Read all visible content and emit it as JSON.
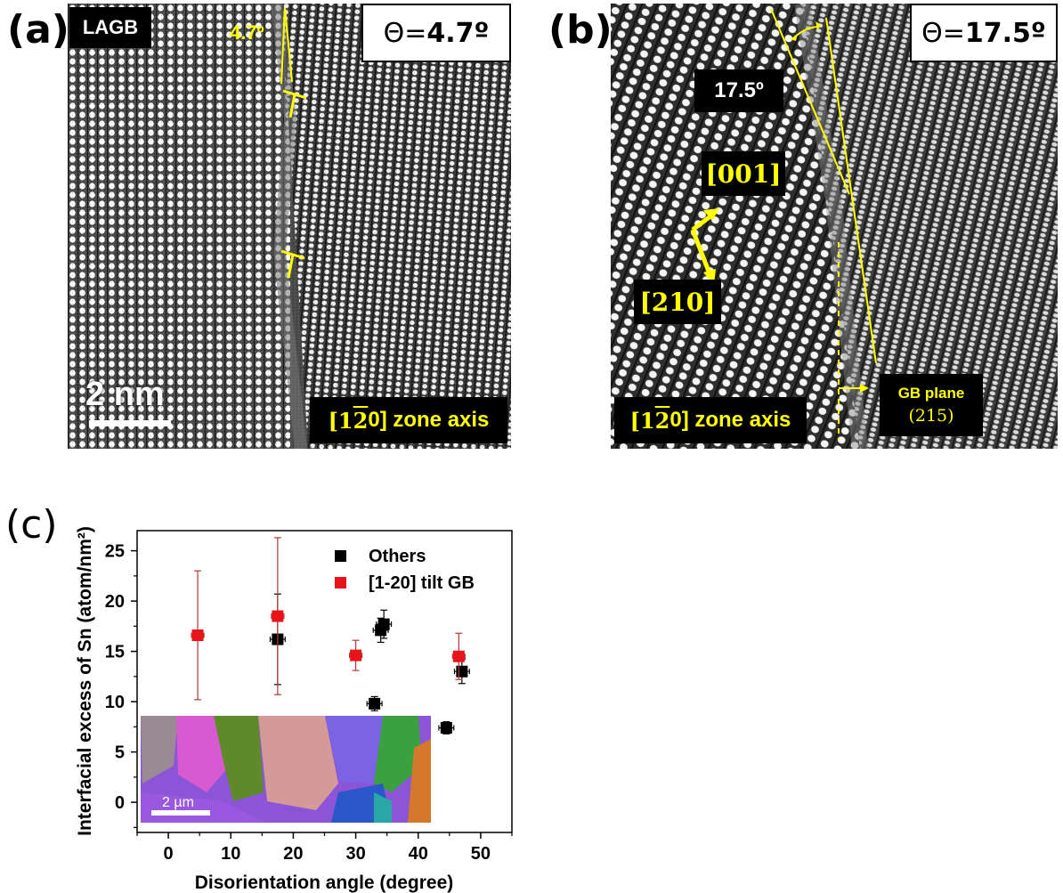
{
  "panel_a": {
    "letter": "(a)",
    "tag": "LAGB",
    "theta_label": "Θ=",
    "theta_value": "4.7º",
    "angle_annotation": "4.7º",
    "scale_bar": "2 nm",
    "zone_axis_prefix": "[1",
    "zone_axis_bar": "2",
    "zone_axis_suffix": "0] zone axis"
  },
  "panel_b": {
    "letter": "(b)",
    "theta_label": "Θ=",
    "theta_value": "17.5º",
    "angle_label": "17.5º",
    "dir_001": "[001]",
    "dir_210": "[210]",
    "zone_axis_prefix": "[1",
    "zone_axis_bar": "2",
    "zone_axis_suffix": "0] zone axis",
    "gb_plane_label": "GB plane",
    "gb_plane_index": "(215)"
  },
  "panel_c": {
    "letter": "(c)",
    "inset_scale_bar": "2 µm"
  },
  "colors": {
    "yellow": "#ffff00",
    "others": "#000000",
    "tilt": "#e8141a",
    "tilt_errbar": "#b03a3a"
  },
  "chart_data": {
    "type": "scatter",
    "title": "",
    "xlabel": "Disorientation angle (degree)",
    "ylabel": "Interfacial excess of Sn (atom/nm²)",
    "xlim": [
      -5,
      55
    ],
    "ylim": [
      -3,
      27
    ],
    "xticks": [
      0,
      10,
      20,
      30,
      40,
      50
    ],
    "yticks": [
      0,
      5,
      10,
      15,
      20,
      25
    ],
    "legend_position": "top-right",
    "series": [
      {
        "name": "Others",
        "color": "#000000",
        "points": [
          {
            "x": 17.5,
            "y": 16.2,
            "xerr": 1.2,
            "yerr": 4.5
          },
          {
            "x": 33.0,
            "y": 9.8,
            "xerr": 1.2,
            "yerr": 0.7
          },
          {
            "x": 34.0,
            "y": 17.1,
            "xerr": 1.2,
            "yerr": 1.2
          },
          {
            "x": 34.5,
            "y": 17.7,
            "xerr": 1.2,
            "yerr": 1.4
          },
          {
            "x": 44.5,
            "y": 7.4,
            "xerr": 1.2,
            "yerr": 0.6
          },
          {
            "x": 47.0,
            "y": 13.0,
            "xerr": 1.2,
            "yerr": 1.2
          }
        ]
      },
      {
        "name": "[1-20] tilt GB",
        "color": "#e8141a",
        "points": [
          {
            "x": 4.7,
            "y": 16.6,
            "xerr": 1.0,
            "yerr": 6.4
          },
          {
            "x": 17.5,
            "y": 18.5,
            "xerr": 1.0,
            "yerr": 7.8
          },
          {
            "x": 30.0,
            "y": 14.6,
            "xerr": 1.0,
            "yerr": 1.5
          },
          {
            "x": 46.5,
            "y": 14.5,
            "xerr": 1.0,
            "yerr": 2.3
          }
        ]
      }
    ]
  }
}
